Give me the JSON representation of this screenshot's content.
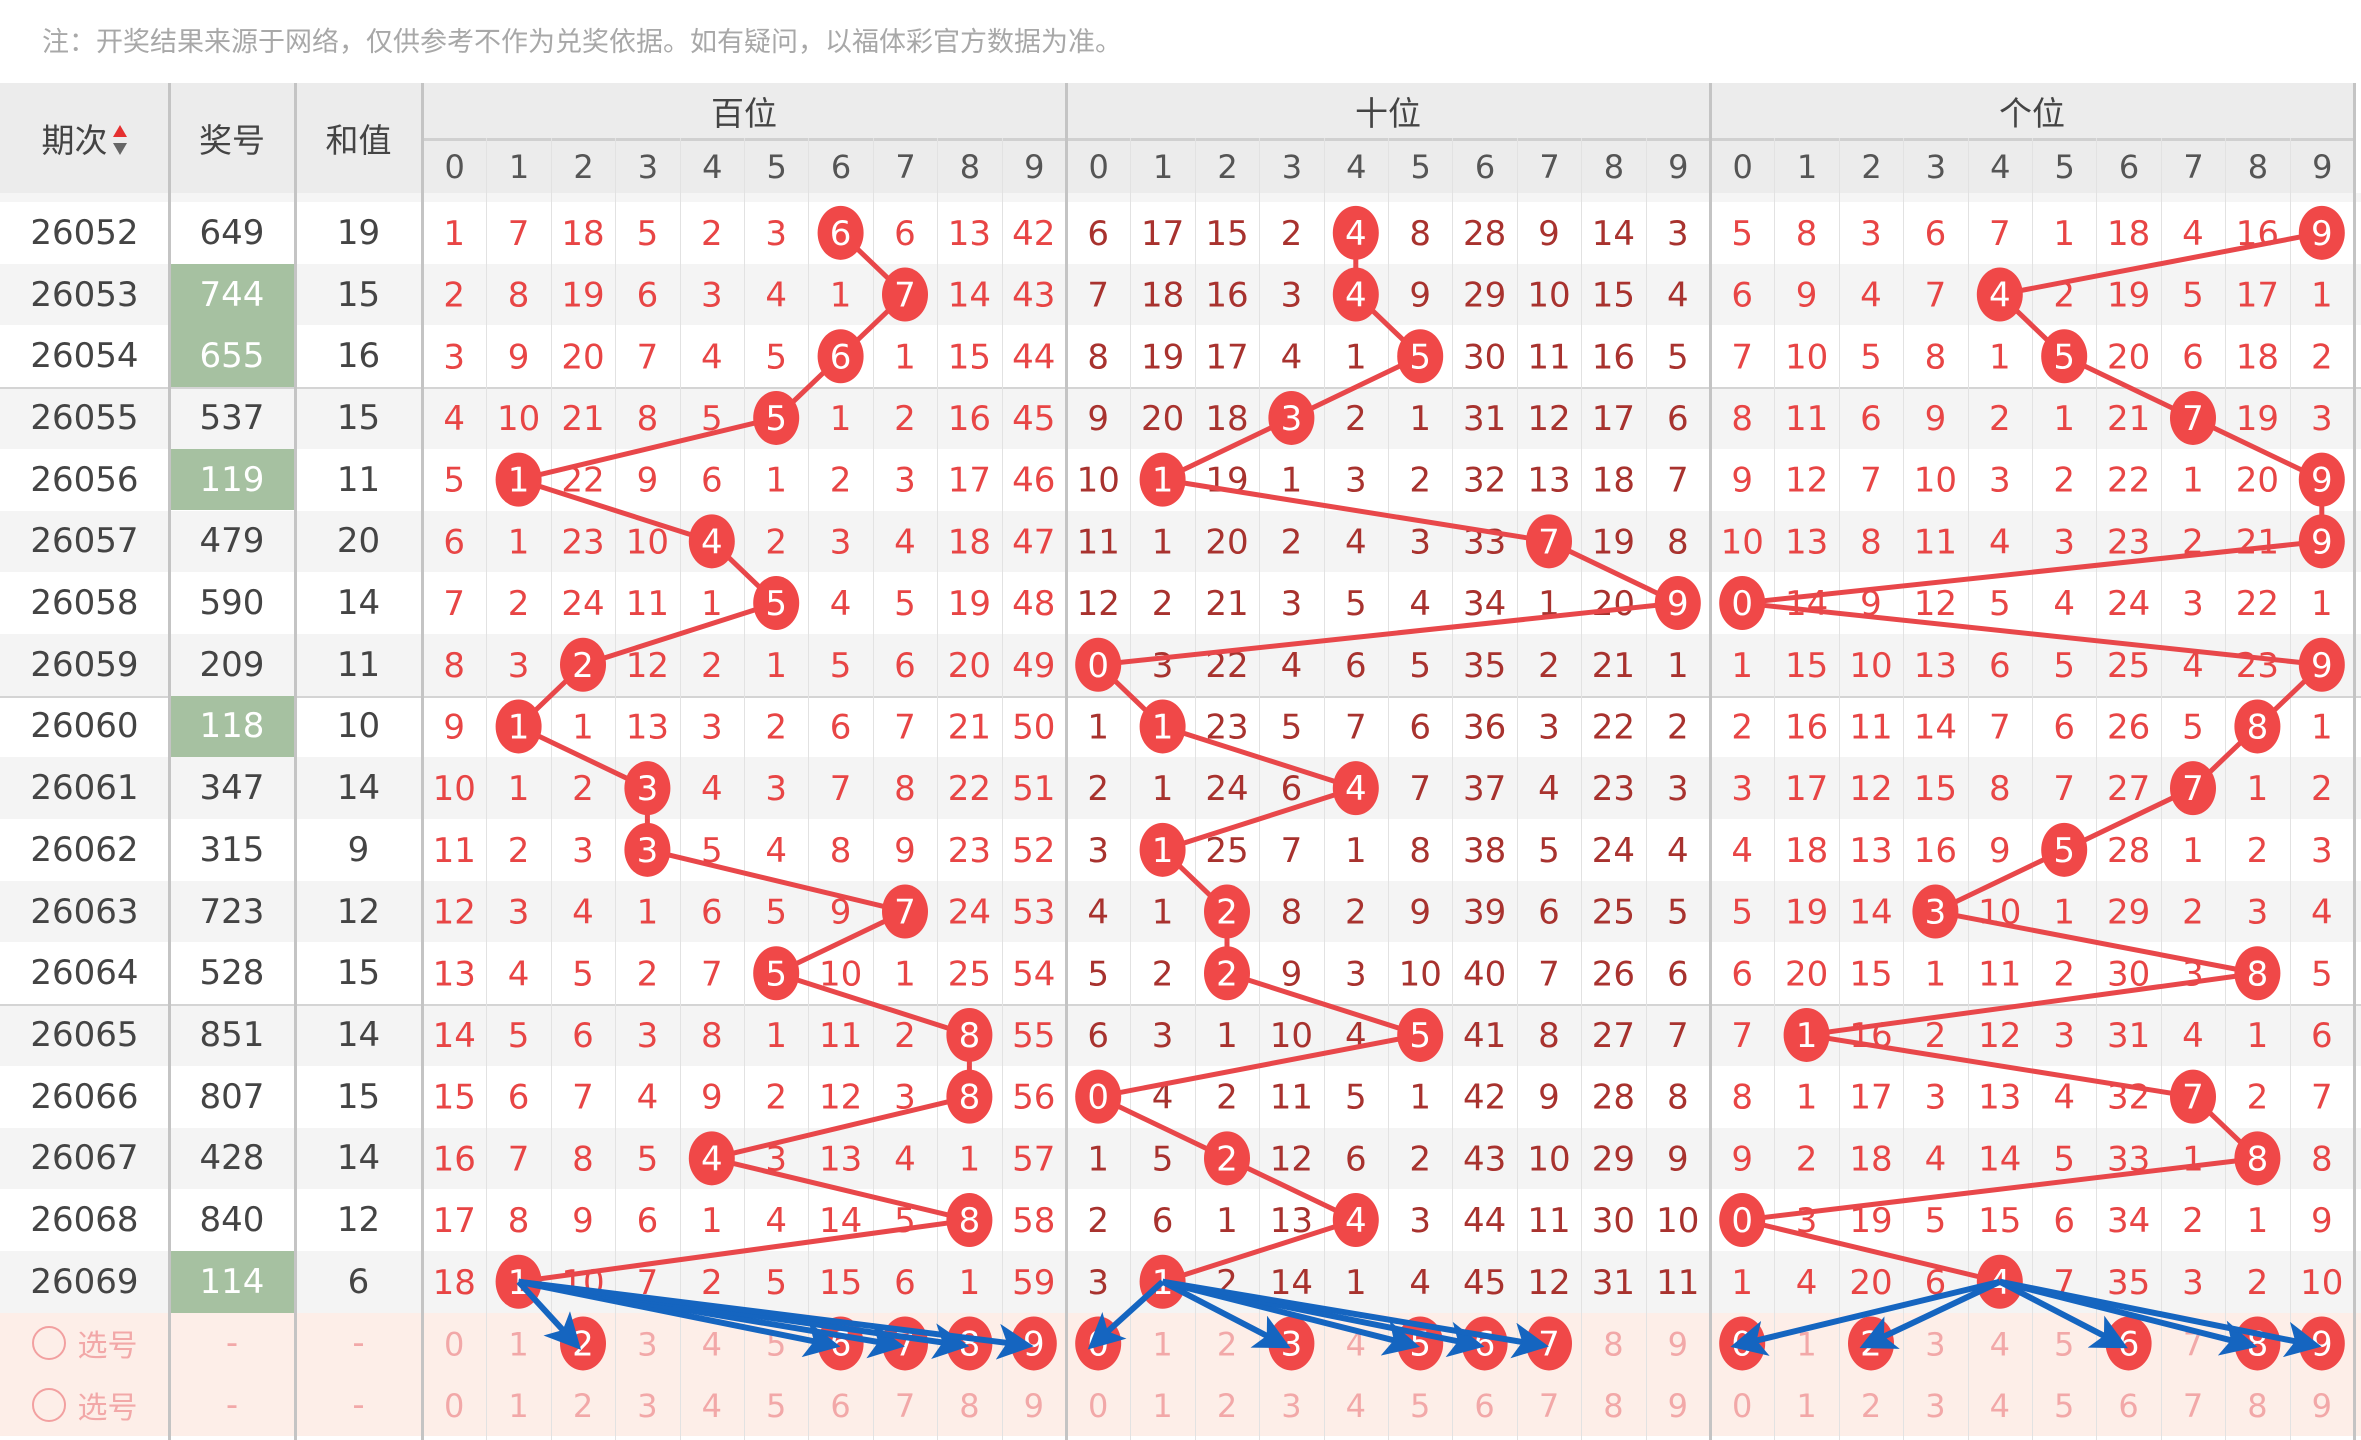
{
  "notice": "注：开奖结果来源于网络，仅供参考不作为兑奖依据。如有疑问，以福体彩官方数据为准。",
  "header": {
    "period": "期次",
    "number": "奖号",
    "sum": "和值",
    "groups": [
      "百位",
      "十位",
      "个位"
    ],
    "digits": [
      "0",
      "1",
      "2",
      "3",
      "4",
      "5",
      "6",
      "7",
      "8",
      "9"
    ],
    "sort_icon": "sort-up-down-icon"
  },
  "rows": [
    {
      "period": "26052",
      "number": "649",
      "sum": "19",
      "highlight": false,
      "hits": [
        6,
        4,
        9
      ],
      "hundreds": [
        "1",
        "7",
        "18",
        "5",
        "2",
        "3",
        "6",
        "6",
        "13",
        "42"
      ],
      "tens": [
        "6",
        "17",
        "15",
        "2",
        "4",
        "8",
        "28",
        "9",
        "14",
        "3"
      ],
      "units": [
        "5",
        "8",
        "3",
        "6",
        "7",
        "1",
        "18",
        "4",
        "16",
        "9"
      ]
    },
    {
      "period": "26053",
      "number": "744",
      "sum": "15",
      "highlight": true,
      "hits": [
        7,
        4,
        4
      ],
      "hundreds": [
        "2",
        "8",
        "19",
        "6",
        "3",
        "4",
        "1",
        "7",
        "14",
        "43"
      ],
      "tens": [
        "7",
        "18",
        "16",
        "3",
        "4",
        "9",
        "29",
        "10",
        "15",
        "4"
      ],
      "units": [
        "6",
        "9",
        "4",
        "7",
        "4",
        "2",
        "19",
        "5",
        "17",
        "1"
      ]
    },
    {
      "period": "26054",
      "number": "655",
      "sum": "16",
      "highlight": true,
      "hits": [
        6,
        5,
        5
      ],
      "hundreds": [
        "3",
        "9",
        "20",
        "7",
        "4",
        "5",
        "6",
        "1",
        "15",
        "44"
      ],
      "tens": [
        "8",
        "19",
        "17",
        "4",
        "1",
        "5",
        "30",
        "11",
        "16",
        "5"
      ],
      "units": [
        "7",
        "10",
        "5",
        "8",
        "1",
        "5",
        "20",
        "6",
        "18",
        "2"
      ]
    },
    {
      "period": "26055",
      "number": "537",
      "sum": "15",
      "highlight": false,
      "hits": [
        5,
        3,
        7
      ],
      "hundreds": [
        "4",
        "10",
        "21",
        "8",
        "5",
        "5",
        "1",
        "2",
        "16",
        "45"
      ],
      "tens": [
        "9",
        "20",
        "18",
        "3",
        "2",
        "1",
        "31",
        "12",
        "17",
        "6"
      ],
      "units": [
        "8",
        "11",
        "6",
        "9",
        "2",
        "1",
        "21",
        "7",
        "19",
        "3"
      ]
    },
    {
      "period": "26056",
      "number": "119",
      "sum": "11",
      "highlight": true,
      "hits": [
        1,
        1,
        9
      ],
      "hundreds": [
        "5",
        "1",
        "22",
        "9",
        "6",
        "1",
        "2",
        "3",
        "17",
        "46"
      ],
      "tens": [
        "10",
        "1",
        "19",
        "1",
        "3",
        "2",
        "32",
        "13",
        "18",
        "7"
      ],
      "units": [
        "9",
        "12",
        "7",
        "10",
        "3",
        "2",
        "22",
        "1",
        "20",
        "9"
      ]
    },
    {
      "period": "26057",
      "number": "479",
      "sum": "20",
      "highlight": false,
      "hits": [
        4,
        7,
        9
      ],
      "hundreds": [
        "6",
        "1",
        "23",
        "10",
        "4",
        "2",
        "3",
        "4",
        "18",
        "47"
      ],
      "tens": [
        "11",
        "1",
        "20",
        "2",
        "4",
        "3",
        "33",
        "7",
        "19",
        "8"
      ],
      "units": [
        "10",
        "13",
        "8",
        "11",
        "4",
        "3",
        "23",
        "2",
        "21",
        "9"
      ]
    },
    {
      "period": "26058",
      "number": "590",
      "sum": "14",
      "highlight": false,
      "hits": [
        5,
        9,
        0
      ],
      "hundreds": [
        "7",
        "2",
        "24",
        "11",
        "1",
        "5",
        "4",
        "5",
        "19",
        "48"
      ],
      "tens": [
        "12",
        "2",
        "21",
        "3",
        "5",
        "4",
        "34",
        "1",
        "20",
        "9"
      ],
      "units": [
        "0",
        "14",
        "9",
        "12",
        "5",
        "4",
        "24",
        "3",
        "22",
        "1"
      ]
    },
    {
      "period": "26059",
      "number": "209",
      "sum": "11",
      "highlight": false,
      "hits": [
        2,
        0,
        9
      ],
      "hundreds": [
        "8",
        "3",
        "2",
        "12",
        "2",
        "1",
        "5",
        "6",
        "20",
        "49"
      ],
      "tens": [
        "0",
        "3",
        "22",
        "4",
        "6",
        "5",
        "35",
        "2",
        "21",
        "1"
      ],
      "units": [
        "1",
        "15",
        "10",
        "13",
        "6",
        "5",
        "25",
        "4",
        "23",
        "9"
      ]
    },
    {
      "period": "26060",
      "number": "118",
      "sum": "10",
      "highlight": true,
      "hits": [
        1,
        1,
        8
      ],
      "hundreds": [
        "9",
        "1",
        "1",
        "13",
        "3",
        "2",
        "6",
        "7",
        "21",
        "50"
      ],
      "tens": [
        "1",
        "1",
        "23",
        "5",
        "7",
        "6",
        "36",
        "3",
        "22",
        "2"
      ],
      "units": [
        "2",
        "16",
        "11",
        "14",
        "7",
        "6",
        "26",
        "5",
        "8",
        "1"
      ]
    },
    {
      "period": "26061",
      "number": "347",
      "sum": "14",
      "highlight": false,
      "hits": [
        3,
        4,
        7
      ],
      "hundreds": [
        "10",
        "1",
        "2",
        "3",
        "4",
        "3",
        "7",
        "8",
        "22",
        "51"
      ],
      "tens": [
        "2",
        "1",
        "24",
        "6",
        "4",
        "7",
        "37",
        "4",
        "23",
        "3"
      ],
      "units": [
        "3",
        "17",
        "12",
        "15",
        "8",
        "7",
        "27",
        "7",
        "1",
        "2"
      ]
    },
    {
      "period": "26062",
      "number": "315",
      "sum": "9",
      "highlight": false,
      "hits": [
        3,
        1,
        5
      ],
      "hundreds": [
        "11",
        "2",
        "3",
        "3",
        "5",
        "4",
        "8",
        "9",
        "23",
        "52"
      ],
      "tens": [
        "3",
        "1",
        "25",
        "7",
        "1",
        "8",
        "38",
        "5",
        "24",
        "4"
      ],
      "units": [
        "4",
        "18",
        "13",
        "16",
        "9",
        "5",
        "28",
        "1",
        "2",
        "3"
      ]
    },
    {
      "period": "26063",
      "number": "723",
      "sum": "12",
      "highlight": false,
      "hits": [
        7,
        2,
        3
      ],
      "hundreds": [
        "12",
        "3",
        "4",
        "1",
        "6",
        "5",
        "9",
        "7",
        "24",
        "53"
      ],
      "tens": [
        "4",
        "1",
        "2",
        "8",
        "2",
        "9",
        "39",
        "6",
        "25",
        "5"
      ],
      "units": [
        "5",
        "19",
        "14",
        "3",
        "10",
        "1",
        "29",
        "2",
        "3",
        "4"
      ]
    },
    {
      "period": "26064",
      "number": "528",
      "sum": "15",
      "highlight": false,
      "hits": [
        5,
        2,
        8
      ],
      "hundreds": [
        "13",
        "4",
        "5",
        "2",
        "7",
        "5",
        "10",
        "1",
        "25",
        "54"
      ],
      "tens": [
        "5",
        "2",
        "2",
        "9",
        "3",
        "10",
        "40",
        "7",
        "26",
        "6"
      ],
      "units": [
        "6",
        "20",
        "15",
        "1",
        "11",
        "2",
        "30",
        "3",
        "8",
        "5"
      ]
    },
    {
      "period": "26065",
      "number": "851",
      "sum": "14",
      "highlight": false,
      "hits": [
        8,
        5,
        1
      ],
      "hundreds": [
        "14",
        "5",
        "6",
        "3",
        "8",
        "1",
        "11",
        "2",
        "8",
        "55"
      ],
      "tens": [
        "6",
        "3",
        "1",
        "10",
        "4",
        "5",
        "41",
        "8",
        "27",
        "7"
      ],
      "units": [
        "7",
        "1",
        "16",
        "2",
        "12",
        "3",
        "31",
        "4",
        "1",
        "6"
      ]
    },
    {
      "period": "26066",
      "number": "807",
      "sum": "15",
      "highlight": false,
      "hits": [
        8,
        0,
        7
      ],
      "hundreds": [
        "15",
        "6",
        "7",
        "4",
        "9",
        "2",
        "12",
        "3",
        "8",
        "56"
      ],
      "tens": [
        "0",
        "4",
        "2",
        "11",
        "5",
        "1",
        "42",
        "9",
        "28",
        "8"
      ],
      "units": [
        "8",
        "1",
        "17",
        "3",
        "13",
        "4",
        "32",
        "7",
        "2",
        "7"
      ]
    },
    {
      "period": "26067",
      "number": "428",
      "sum": "14",
      "highlight": false,
      "hits": [
        4,
        2,
        8
      ],
      "hundreds": [
        "16",
        "7",
        "8",
        "5",
        "4",
        "3",
        "13",
        "4",
        "1",
        "57"
      ],
      "tens": [
        "1",
        "5",
        "2",
        "12",
        "6",
        "2",
        "43",
        "10",
        "29",
        "9"
      ],
      "units": [
        "9",
        "2",
        "18",
        "4",
        "14",
        "5",
        "33",
        "1",
        "8",
        "8"
      ]
    },
    {
      "period": "26068",
      "number": "840",
      "sum": "12",
      "highlight": false,
      "hits": [
        8,
        4,
        0
      ],
      "hundreds": [
        "17",
        "8",
        "9",
        "6",
        "1",
        "4",
        "14",
        "5",
        "8",
        "58"
      ],
      "tens": [
        "2",
        "6",
        "1",
        "13",
        "4",
        "3",
        "44",
        "11",
        "30",
        "10"
      ],
      "units": [
        "0",
        "3",
        "19",
        "5",
        "15",
        "6",
        "34",
        "2",
        "1",
        "9"
      ]
    },
    {
      "period": "26069",
      "number": "114",
      "sum": "6",
      "highlight": true,
      "hits": [
        1,
        1,
        4
      ],
      "hundreds": [
        "18",
        "1",
        "10",
        "7",
        "2",
        "5",
        "15",
        "6",
        "1",
        "59"
      ],
      "tens": [
        "3",
        "1",
        "2",
        "14",
        "1",
        "4",
        "45",
        "12",
        "31",
        "11"
      ],
      "units": [
        "1",
        "4",
        "20",
        "6",
        "4",
        "7",
        "35",
        "3",
        "2",
        "10"
      ]
    }
  ],
  "selection_rows": [
    {
      "label": "选号",
      "number": "-",
      "sum": "-",
      "selected": {
        "hundreds": [
          2,
          6,
          7,
          8,
          9
        ],
        "tens": [
          0,
          3,
          5,
          6,
          7
        ],
        "units": [
          0,
          2,
          6,
          8,
          9
        ]
      }
    },
    {
      "label": "选号",
      "number": "-",
      "sum": "-",
      "selected": {
        "hundreds": [],
        "tens": [],
        "units": []
      }
    }
  ],
  "colors": {
    "hit_ball": "#f04848",
    "trend_line": "#e8474a",
    "arrow": "#1565c0",
    "repeat_highlight": "#a6c1a1",
    "selection_bg": "#fdeee8"
  }
}
